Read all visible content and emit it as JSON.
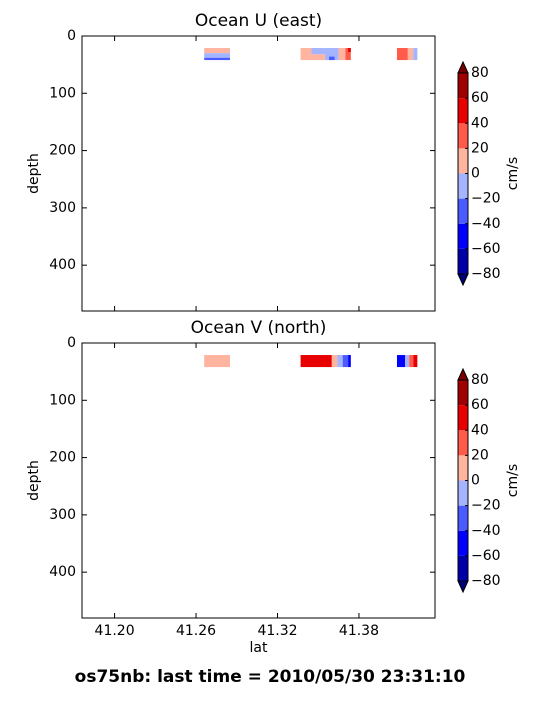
{
  "suptitle": "os75nb: last time = 2010/05/30 23:31:10",
  "chart_data": [
    {
      "type": "contour",
      "title": "Ocean U (east)",
      "ylabel": "depth",
      "colorbar_label": "cm/s",
      "xlim": [
        41.176,
        41.436
      ],
      "ylim": [
        480,
        0
      ],
      "xticks": [
        41.2,
        41.26,
        41.32,
        41.38
      ],
      "xtick_labels": false,
      "yticks": [
        0,
        100,
        200,
        300,
        400
      ],
      "levels": [
        -80,
        -60,
        -40,
        -20,
        0,
        20,
        40,
        60,
        80
      ],
      "colors": [
        "#0000a8",
        "#0000ff",
        "#4a5cff",
        "#a4b4ff",
        "#ffb4a0",
        "#ff5a4a",
        "#e80000",
        "#a00000"
      ],
      "extend_colors": [
        "#00007a",
        "#780000"
      ],
      "cticks": [
        {
          "value": -80,
          "label": "−80"
        },
        {
          "value": -60,
          "label": "−60"
        },
        {
          "value": -40,
          "label": "−40"
        },
        {
          "value": -20,
          "label": "−20"
        },
        0,
        20,
        40,
        60,
        80
      ],
      "cells": [
        {
          "x": [
            41.266,
            41.285
          ],
          "depth": [
            21,
            30
          ],
          "value": 10
        },
        {
          "x": [
            41.266,
            41.285
          ],
          "depth": [
            30,
            38
          ],
          "value": -10
        },
        {
          "x": [
            41.266,
            41.285
          ],
          "depth": [
            38,
            42
          ],
          "value": -30
        },
        {
          "x": [
            41.337,
            41.345
          ],
          "depth": [
            21,
            42
          ],
          "value": 10
        },
        {
          "x": [
            41.345,
            41.355
          ],
          "depth": [
            21,
            32
          ],
          "value": -10
        },
        {
          "x": [
            41.345,
            41.355
          ],
          "depth": [
            32,
            42
          ],
          "value": 10
        },
        {
          "x": [
            41.355,
            41.365
          ],
          "depth": [
            21,
            42
          ],
          "value": -10
        },
        {
          "x": [
            41.358,
            41.362
          ],
          "depth": [
            36,
            42
          ],
          "value": -30
        },
        {
          "x": [
            41.365,
            41.37
          ],
          "depth": [
            21,
            42
          ],
          "value": 10
        },
        {
          "x": [
            41.37,
            41.374
          ],
          "depth": [
            21,
            42
          ],
          "value": 30
        },
        {
          "x": [
            41.372,
            41.374
          ],
          "depth": [
            21,
            28
          ],
          "value": 50
        },
        {
          "x": [
            41.408,
            41.416
          ],
          "depth": [
            21,
            42
          ],
          "value": 30
        },
        {
          "x": [
            41.416,
            41.42
          ],
          "depth": [
            21,
            42
          ],
          "value": 10
        },
        {
          "x": [
            41.42,
            41.423
          ],
          "depth": [
            21,
            42
          ],
          "value": -10
        }
      ]
    },
    {
      "type": "contour",
      "title": "Ocean V (north)",
      "ylabel": "depth",
      "xlabel": "lat",
      "colorbar_label": "cm/s",
      "xlim": [
        41.176,
        41.436
      ],
      "ylim": [
        480,
        0
      ],
      "xticks": [
        {
          "value": 41.2,
          "label": "41.20"
        },
        {
          "value": 41.26,
          "label": "41.26"
        },
        {
          "value": 41.32,
          "label": "41.32"
        },
        {
          "value": 41.38,
          "label": "41.38"
        }
      ],
      "yticks": [
        0,
        100,
        200,
        300,
        400
      ],
      "levels": [
        -80,
        -60,
        -40,
        -20,
        0,
        20,
        40,
        60,
        80
      ],
      "colors": [
        "#0000a8",
        "#0000ff",
        "#4a5cff",
        "#a4b4ff",
        "#ffb4a0",
        "#ff5a4a",
        "#e80000",
        "#a00000"
      ],
      "extend_colors": [
        "#00007a",
        "#780000"
      ],
      "cticks": [
        {
          "value": -80,
          "label": "−80"
        },
        {
          "value": -60,
          "label": "−60"
        },
        {
          "value": -40,
          "label": "−40"
        },
        {
          "value": -20,
          "label": "−20"
        },
        0,
        20,
        40,
        60,
        80
      ],
      "cells": [
        {
          "x": [
            41.266,
            41.285
          ],
          "depth": [
            21,
            42
          ],
          "value": 10
        },
        {
          "x": [
            41.337,
            41.36
          ],
          "depth": [
            21,
            42
          ],
          "value": 50
        },
        {
          "x": [
            41.36,
            41.364
          ],
          "depth": [
            21,
            42
          ],
          "value": 10
        },
        {
          "x": [
            41.364,
            41.368
          ],
          "depth": [
            21,
            42
          ],
          "value": -10
        },
        {
          "x": [
            41.368,
            41.372
          ],
          "depth": [
            21,
            42
          ],
          "value": -30
        },
        {
          "x": [
            41.372,
            41.374
          ],
          "depth": [
            21,
            42
          ],
          "value": -50
        },
        {
          "x": [
            41.408,
            41.414
          ],
          "depth": [
            21,
            42
          ],
          "value": -50
        },
        {
          "x": [
            41.414,
            41.417
          ],
          "depth": [
            21,
            42
          ],
          "value": -10
        },
        {
          "x": [
            41.417,
            41.42
          ],
          "depth": [
            21,
            42
          ],
          "value": 30
        },
        {
          "x": [
            41.42,
            41.423
          ],
          "depth": [
            21,
            42
          ],
          "value": 50
        }
      ]
    }
  ]
}
